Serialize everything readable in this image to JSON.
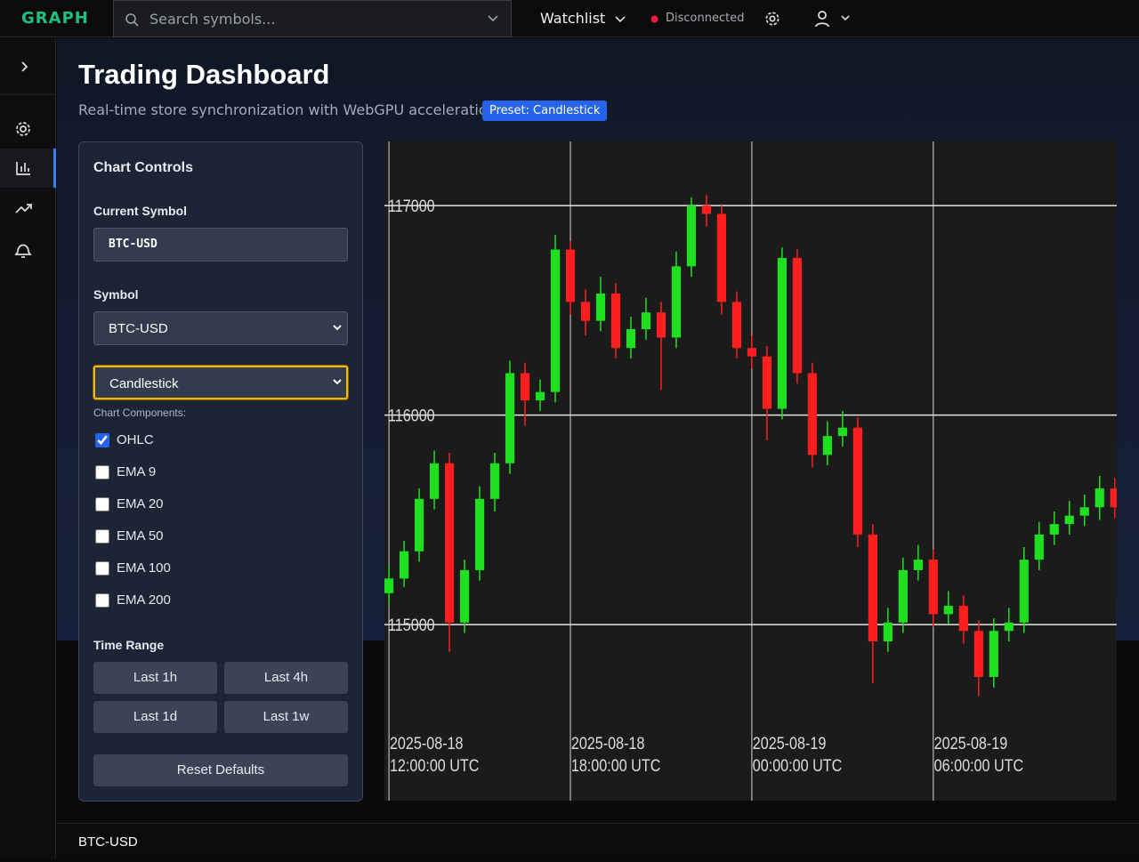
{
  "header": {
    "logo": "GRAPH",
    "search_placeholder": "Search symbols...",
    "watchlist": "Watchlist",
    "status": "Disconnected"
  },
  "page": {
    "title": "Trading Dashboard",
    "subtitle": "Real-time store synchronization with WebGPU acceleration",
    "badge": "Preset: Candlestick"
  },
  "controls": {
    "title": "Chart Controls",
    "current_symbol_label": "Current Symbol",
    "current_symbol": "BTC-USD",
    "symbol_label": "Symbol",
    "symbol": "BTC-USD",
    "chart_type": "Candlestick",
    "components_label": "Chart Components:",
    "components": [
      {
        "name": "OHLC",
        "checked": true
      },
      {
        "name": "EMA 9",
        "checked": false
      },
      {
        "name": "EMA 20",
        "checked": false
      },
      {
        "name": "EMA 50",
        "checked": false
      },
      {
        "name": "EMA 100",
        "checked": false
      },
      {
        "name": "EMA 200",
        "checked": false
      }
    ],
    "time_range_label": "Time Range",
    "time_ranges": [
      "Last 1h",
      "Last 4h",
      "Last 1d",
      "Last 1w"
    ],
    "reset": "Reset Defaults"
  },
  "chart_data": {
    "type": "candlestick",
    "up_color": "#1fe01f",
    "down_color": "#ff1f1f",
    "grid": true,
    "x": [
      "2025-08-18 12:00:00",
      "2025-08-18 12:30:00",
      "2025-08-18 13:00:00",
      "2025-08-18 13:30:00",
      "2025-08-18 14:00:00",
      "2025-08-18 14:30:00",
      "2025-08-18 15:00:00",
      "2025-08-18 15:30:00",
      "2025-08-18 16:00:00",
      "2025-08-18 16:30:00",
      "2025-08-18 17:00:00",
      "2025-08-18 17:30:00",
      "2025-08-18 18:00:00",
      "2025-08-18 18:30:00",
      "2025-08-18 19:00:00",
      "2025-08-18 19:30:00",
      "2025-08-18 20:00:00",
      "2025-08-18 20:30:00",
      "2025-08-18 21:00:00",
      "2025-08-18 21:30:00",
      "2025-08-18 22:00:00",
      "2025-08-18 22:30:00",
      "2025-08-18 23:00:00",
      "2025-08-18 23:30:00",
      "2025-08-19 00:00:00",
      "2025-08-19 00:30:00",
      "2025-08-19 01:00:00",
      "2025-08-19 01:30:00",
      "2025-08-19 02:00:00",
      "2025-08-19 02:30:00",
      "2025-08-19 03:00:00",
      "2025-08-19 03:30:00",
      "2025-08-19 04:00:00",
      "2025-08-19 04:30:00",
      "2025-08-19 05:00:00",
      "2025-08-19 05:30:00",
      "2025-08-19 06:00:00",
      "2025-08-19 06:30:00",
      "2025-08-19 07:00:00",
      "2025-08-19 07:30:00",
      "2025-08-19 08:00:00",
      "2025-08-19 08:30:00",
      "2025-08-19 09:00:00",
      "2025-08-19 09:30:00",
      "2025-08-19 10:00:00",
      "2025-08-19 10:30:00",
      "2025-08-19 11:00:00",
      "2025-08-19 11:30:00",
      "2025-08-19 12:00:00"
    ],
    "open": [
      115150,
      115220,
      115350,
      115600,
      115770,
      115010,
      115260,
      115600,
      115770,
      116200,
      116070,
      116110,
      116790,
      116540,
      116450,
      116580,
      116320,
      116410,
      116490,
      116370,
      116710,
      117000,
      116960,
      116540,
      116320,
      116280,
      116030,
      116750,
      116200,
      115810,
      115900,
      115940,
      115430,
      114920,
      115010,
      115260,
      115310,
      115050,
      115090,
      114970,
      114750,
      114970,
      115010,
      115310,
      115430,
      115480,
      115520,
      115560,
      115650
    ],
    "high": [
      115280,
      115400,
      115650,
      115830,
      115820,
      115310,
      115660,
      115820,
      116260,
      116250,
      116170,
      116860,
      116830,
      116600,
      116660,
      116630,
      116470,
      116560,
      116540,
      116780,
      117040,
      117050,
      117000,
      116590,
      116380,
      116330,
      116800,
      116790,
      116250,
      115970,
      116020,
      115990,
      115480,
      115080,
      115320,
      115380,
      115360,
      115160,
      115140,
      115020,
      115030,
      115080,
      115370,
      115490,
      115540,
      115590,
      115620,
      115710,
      115700
    ],
    "low": [
      115100,
      115180,
      115300,
      115550,
      114870,
      114960,
      115210,
      115540,
      115720,
      115950,
      116020,
      116060,
      116480,
      116380,
      116400,
      116270,
      116270,
      116360,
      116120,
      116320,
      116660,
      116900,
      116480,
      116270,
      116220,
      115880,
      115980,
      116150,
      115750,
      115760,
      115850,
      115370,
      114720,
      114870,
      114960,
      115210,
      114990,
      115000,
      114910,
      114660,
      114700,
      114920,
      114960,
      115260,
      115380,
      115430,
      115470,
      115500,
      115510
    ],
    "close": [
      115220,
      115350,
      115600,
      115770,
      115010,
      115260,
      115600,
      115770,
      116200,
      116070,
      116110,
      116790,
      116540,
      116450,
      116580,
      116320,
      116410,
      116490,
      116370,
      116710,
      117000,
      116960,
      116540,
      116320,
      116280,
      116030,
      116750,
      116200,
      115810,
      115900,
      115940,
      115430,
      114920,
      115010,
      115260,
      115310,
      115050,
      115090,
      114970,
      114750,
      114970,
      115010,
      115310,
      115430,
      115480,
      115520,
      115560,
      115650,
      115560
    ],
    "xlim": [
      "2025-08-18 11:51:00",
      "2025-08-19 12:04:00"
    ],
    "xticks": [
      {
        "value": "2025-08-18 12:00:00",
        "label": [
          "2025-08-18",
          "12:00:00 UTC"
        ]
      },
      {
        "value": "2025-08-18 18:00:00",
        "label": [
          "2025-08-18",
          "18:00:00 UTC"
        ]
      },
      {
        "value": "2025-08-19 00:00:00",
        "label": [
          "2025-08-19",
          "00:00:00 UTC"
        ]
      },
      {
        "value": "2025-08-19 06:00:00",
        "label": [
          "2025-08-19",
          "06:00:00 UTC"
        ]
      }
    ],
    "ylim": [
      114160,
      117306
    ],
    "yticks": [
      115000,
      116000,
      117000
    ]
  },
  "footer": {
    "symbol": "BTC-USD"
  }
}
